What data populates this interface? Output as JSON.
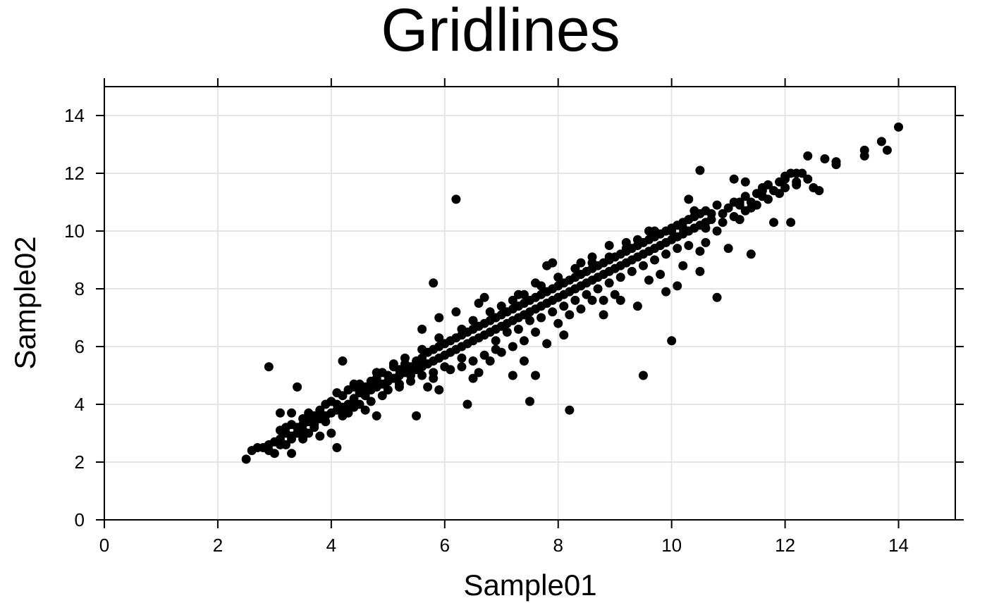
{
  "chart_data": {
    "type": "scatter",
    "title": "Gridlines",
    "xlabel": "Sample01",
    "ylabel": "Sample02",
    "xlim": [
      0,
      15
    ],
    "ylim": [
      0,
      15
    ],
    "xticks": [
      0,
      2,
      4,
      6,
      8,
      10,
      12,
      14
    ],
    "yticks": [
      0,
      2,
      4,
      6,
      8,
      10,
      12,
      14
    ],
    "grid": true,
    "marker_color": "#000000",
    "grid_color": "#e5e5e5",
    "points": [
      [
        2.5,
        2.1
      ],
      [
        2.6,
        2.4
      ],
      [
        2.7,
        2.5
      ],
      [
        2.8,
        2.5
      ],
      [
        2.9,
        2.6
      ],
      [
        3.0,
        2.7
      ],
      [
        2.9,
        2.4
      ],
      [
        3.0,
        2.3
      ],
      [
        3.1,
        2.8
      ],
      [
        3.2,
        2.6
      ],
      [
        3.1,
        3.1
      ],
      [
        3.2,
        3.2
      ],
      [
        3.3,
        2.9
      ],
      [
        3.3,
        3.3
      ],
      [
        3.4,
        3.0
      ],
      [
        3.4,
        3.2
      ],
      [
        3.5,
        3.3
      ],
      [
        3.5,
        3.5
      ],
      [
        3.6,
        3.4
      ],
      [
        3.6,
        3.7
      ],
      [
        3.7,
        3.3
      ],
      [
        3.7,
        3.6
      ],
      [
        3.8,
        3.5
      ],
      [
        3.8,
        3.8
      ],
      [
        3.9,
        3.6
      ],
      [
        3.9,
        4.0
      ],
      [
        4.0,
        3.7
      ],
      [
        4.0,
        4.1
      ],
      [
        4.1,
        3.8
      ],
      [
        4.1,
        4.0
      ],
      [
        4.2,
        3.9
      ],
      [
        4.2,
        4.3
      ],
      [
        4.3,
        4.0
      ],
      [
        4.3,
        4.5
      ],
      [
        4.4,
        4.2
      ],
      [
        4.4,
        4.6
      ],
      [
        4.5,
        4.4
      ],
      [
        4.5,
        4.7
      ],
      [
        4.6,
        4.3
      ],
      [
        4.6,
        4.6
      ],
      [
        4.7,
        4.5
      ],
      [
        4.7,
        4.8
      ],
      [
        4.8,
        4.6
      ],
      [
        4.8,
        4.9
      ],
      [
        4.9,
        4.7
      ],
      [
        4.9,
        5.1
      ],
      [
        5.0,
        4.8
      ],
      [
        5.0,
        5.0
      ],
      [
        5.1,
        4.9
      ],
      [
        5.1,
        5.3
      ],
      [
        5.2,
        5.0
      ],
      [
        5.2,
        5.2
      ],
      [
        5.3,
        5.1
      ],
      [
        5.3,
        5.4
      ],
      [
        5.4,
        5.0
      ],
      [
        5.4,
        5.3
      ],
      [
        5.5,
        5.2
      ],
      [
        5.5,
        5.5
      ],
      [
        5.6,
        5.3
      ],
      [
        5.6,
        5.6
      ],
      [
        5.7,
        5.4
      ],
      [
        5.7,
        5.8
      ],
      [
        5.8,
        5.5
      ],
      [
        5.8,
        5.9
      ],
      [
        5.9,
        5.6
      ],
      [
        5.9,
        6.0
      ],
      [
        6.0,
        5.7
      ],
      [
        6.0,
        6.1
      ],
      [
        6.1,
        5.8
      ],
      [
        6.1,
        6.2
      ],
      [
        6.2,
        5.9
      ],
      [
        6.2,
        6.3
      ],
      [
        6.3,
        6.0
      ],
      [
        6.3,
        6.4
      ],
      [
        6.4,
        6.1
      ],
      [
        6.4,
        6.5
      ],
      [
        6.5,
        6.2
      ],
      [
        6.5,
        6.6
      ],
      [
        6.6,
        6.3
      ],
      [
        6.6,
        6.7
      ],
      [
        6.7,
        6.4
      ],
      [
        6.7,
        6.8
      ],
      [
        6.8,
        6.5
      ],
      [
        6.8,
        6.9
      ],
      [
        6.9,
        6.6
      ],
      [
        6.9,
        7.0
      ],
      [
        7.0,
        6.7
      ],
      [
        7.0,
        7.1
      ],
      [
        7.1,
        6.8
      ],
      [
        7.1,
        7.2
      ],
      [
        7.2,
        6.9
      ],
      [
        7.2,
        7.3
      ],
      [
        7.3,
        7.0
      ],
      [
        7.3,
        7.4
      ],
      [
        7.4,
        7.1
      ],
      [
        7.4,
        7.5
      ],
      [
        7.5,
        7.2
      ],
      [
        7.5,
        7.6
      ],
      [
        7.6,
        7.3
      ],
      [
        7.6,
        7.7
      ],
      [
        7.7,
        7.4
      ],
      [
        7.7,
        7.8
      ],
      [
        7.8,
        7.5
      ],
      [
        7.8,
        7.9
      ],
      [
        7.9,
        7.6
      ],
      [
        7.9,
        8.0
      ],
      [
        8.0,
        7.7
      ],
      [
        8.0,
        8.1
      ],
      [
        8.1,
        7.8
      ],
      [
        8.1,
        8.2
      ],
      [
        8.2,
        7.9
      ],
      [
        8.2,
        8.3
      ],
      [
        8.3,
        8.0
      ],
      [
        8.3,
        8.4
      ],
      [
        8.4,
        8.1
      ],
      [
        8.4,
        8.5
      ],
      [
        8.5,
        8.2
      ],
      [
        8.5,
        8.6
      ],
      [
        8.6,
        8.3
      ],
      [
        8.6,
        8.7
      ],
      [
        8.7,
        8.4
      ],
      [
        8.7,
        8.8
      ],
      [
        8.8,
        8.5
      ],
      [
        8.8,
        8.9
      ],
      [
        8.9,
        8.6
      ],
      [
        8.9,
        9.0
      ],
      [
        9.0,
        8.7
      ],
      [
        9.0,
        9.1
      ],
      [
        9.1,
        8.8
      ],
      [
        9.1,
        9.2
      ],
      [
        9.2,
        8.9
      ],
      [
        9.2,
        9.3
      ],
      [
        9.3,
        9.0
      ],
      [
        9.3,
        9.4
      ],
      [
        9.4,
        9.1
      ],
      [
        9.4,
        9.5
      ],
      [
        9.5,
        9.2
      ],
      [
        9.5,
        9.6
      ],
      [
        9.6,
        9.3
      ],
      [
        9.6,
        9.7
      ],
      [
        9.7,
        9.4
      ],
      [
        9.7,
        9.8
      ],
      [
        9.8,
        9.5
      ],
      [
        9.8,
        9.9
      ],
      [
        9.9,
        9.6
      ],
      [
        9.9,
        10.0
      ],
      [
        10.0,
        9.7
      ],
      [
        10.0,
        10.1
      ],
      [
        10.1,
        9.8
      ],
      [
        10.1,
        10.2
      ],
      [
        10.2,
        9.9
      ],
      [
        10.2,
        10.3
      ],
      [
        10.3,
        10.0
      ],
      [
        10.3,
        10.4
      ],
      [
        10.4,
        10.1
      ],
      [
        10.4,
        10.5
      ],
      [
        10.5,
        10.2
      ],
      [
        10.5,
        10.6
      ],
      [
        10.6,
        10.3
      ],
      [
        10.6,
        10.7
      ],
      [
        10.7,
        10.4
      ],
      [
        10.8,
        10.9
      ],
      [
        10.9,
        10.6
      ],
      [
        11.0,
        10.8
      ],
      [
        11.1,
        11.0
      ],
      [
        11.1,
        10.5
      ],
      [
        11.2,
        10.9
      ],
      [
        11.3,
        11.2
      ],
      [
        11.3,
        10.7
      ],
      [
        11.4,
        11.0
      ],
      [
        11.5,
        11.3
      ],
      [
        11.5,
        10.9
      ],
      [
        11.6,
        11.4
      ],
      [
        11.7,
        11.1
      ],
      [
        11.7,
        11.6
      ],
      [
        11.8,
        11.4
      ],
      [
        11.9,
        11.7
      ],
      [
        12.0,
        11.5
      ],
      [
        12.0,
        11.8
      ],
      [
        12.1,
        12.0
      ],
      [
        12.2,
        11.7
      ],
      [
        12.3,
        12.0
      ],
      [
        12.4,
        11.8
      ],
      [
        12.5,
        11.5
      ],
      [
        12.6,
        11.4
      ],
      [
        12.7,
        12.5
      ],
      [
        12.9,
        12.4
      ],
      [
        13.4,
        12.8
      ],
      [
        13.7,
        13.1
      ],
      [
        14.0,
        13.6
      ],
      [
        13.4,
        12.6
      ],
      [
        13.8,
        12.8
      ],
      [
        12.9,
        12.3
      ],
      [
        12.4,
        12.6
      ],
      [
        12.2,
        12.0
      ],
      [
        12.1,
        10.3
      ],
      [
        11.8,
        10.3
      ],
      [
        11.4,
        9.2
      ],
      [
        11.0,
        9.4
      ],
      [
        10.8,
        7.7
      ],
      [
        10.5,
        8.6
      ],
      [
        10.1,
        8.1
      ],
      [
        10.0,
        6.2
      ],
      [
        9.5,
        5.0
      ],
      [
        8.2,
        3.8
      ],
      [
        7.5,
        4.1
      ],
      [
        6.4,
        4.0
      ],
      [
        5.5,
        3.6
      ],
      [
        4.1,
        2.5
      ],
      [
        3.3,
        2.3
      ],
      [
        2.9,
        5.3
      ],
      [
        3.4,
        4.6
      ],
      [
        4.2,
        5.5
      ],
      [
        5.8,
        8.2
      ],
      [
        6.2,
        11.1
      ],
      [
        10.5,
        12.1
      ],
      [
        10.3,
        11.1
      ],
      [
        11.1,
        11.8
      ],
      [
        11.3,
        11.7
      ],
      [
        9.9,
        7.9
      ],
      [
        9.4,
        7.4
      ],
      [
        9.1,
        7.6
      ],
      [
        8.8,
        7.1
      ],
      [
        8.6,
        7.6
      ],
      [
        8.4,
        7.3
      ],
      [
        8.1,
        6.4
      ],
      [
        7.8,
        6.1
      ],
      [
        7.6,
        5.0
      ],
      [
        7.4,
        5.5
      ],
      [
        7.2,
        5.0
      ],
      [
        7.0,
        5.8
      ],
      [
        6.8,
        5.5
      ],
      [
        6.6,
        5.1
      ],
      [
        6.5,
        4.9
      ],
      [
        6.3,
        5.3
      ],
      [
        6.1,
        5.2
      ],
      [
        5.9,
        4.5
      ],
      [
        5.7,
        4.6
      ],
      [
        5.8,
        4.9
      ],
      [
        5.2,
        4.7
      ],
      [
        4.8,
        3.6
      ],
      [
        4.6,
        3.8
      ],
      [
        4.3,
        3.7
      ],
      [
        4.0,
        3.0
      ],
      [
        3.8,
        2.9
      ],
      [
        3.6,
        3.0
      ],
      [
        3.3,
        3.7
      ],
      [
        3.1,
        3.7
      ],
      [
        3.5,
        2.8
      ],
      [
        3.2,
        3.0
      ],
      [
        5.6,
        6.6
      ],
      [
        5.9,
        7.0
      ],
      [
        6.2,
        7.2
      ],
      [
        6.6,
        7.5
      ],
      [
        6.7,
        7.7
      ],
      [
        7.3,
        7.8
      ],
      [
        7.6,
        8.2
      ],
      [
        7.8,
        8.8
      ],
      [
        7.9,
        8.9
      ],
      [
        8.4,
        8.9
      ],
      [
        8.6,
        9.1
      ],
      [
        8.9,
        9.5
      ],
      [
        9.2,
        9.6
      ],
      [
        9.6,
        10.0
      ],
      [
        10.0,
        10.0
      ],
      [
        10.4,
        10.7
      ],
      [
        10.7,
        10.6
      ],
      [
        11.2,
        11.0
      ],
      [
        11.6,
        11.5
      ],
      [
        12.0,
        11.9
      ],
      [
        6.9,
        6.2
      ],
      [
        7.1,
        6.5
      ],
      [
        7.3,
        6.6
      ],
      [
        7.5,
        6.9
      ],
      [
        7.7,
        7.0
      ],
      [
        7.9,
        7.2
      ],
      [
        8.1,
        7.4
      ],
      [
        8.3,
        7.6
      ],
      [
        8.5,
        7.8
      ],
      [
        8.7,
        8.0
      ],
      [
        8.9,
        8.2
      ],
      [
        9.1,
        8.4
      ],
      [
        9.3,
        8.6
      ],
      [
        9.5,
        8.8
      ],
      [
        9.7,
        9.0
      ],
      [
        9.9,
        9.2
      ],
      [
        10.1,
        9.4
      ],
      [
        10.3,
        9.5
      ],
      [
        10.5,
        9.3
      ],
      [
        10.6,
        9.6
      ],
      [
        10.2,
        8.8
      ],
      [
        9.8,
        8.5
      ],
      [
        9.6,
        8.3
      ],
      [
        9.0,
        7.8
      ],
      [
        8.8,
        7.6
      ],
      [
        8.2,
        7.1
      ],
      [
        8.0,
        6.8
      ],
      [
        7.6,
        6.5
      ],
      [
        7.4,
        6.2
      ],
      [
        7.2,
        6.0
      ],
      [
        6.9,
        5.9
      ],
      [
        6.7,
        5.7
      ],
      [
        6.5,
        5.5
      ],
      [
        6.3,
        5.6
      ],
      [
        6.0,
        5.3
      ],
      [
        5.8,
        5.1
      ],
      [
        5.6,
        5.0
      ],
      [
        5.4,
        4.8
      ],
      [
        5.2,
        4.6
      ],
      [
        5.0,
        4.5
      ],
      [
        4.9,
        4.3
      ],
      [
        4.7,
        4.1
      ],
      [
        4.5,
        4.0
      ],
      [
        4.4,
        3.9
      ],
      [
        4.2,
        3.6
      ],
      [
        3.9,
        3.4
      ],
      [
        3.7,
        3.2
      ],
      [
        3.5,
        3.1
      ],
      [
        3.3,
        2.8
      ],
      [
        3.1,
        2.6
      ],
      [
        4.1,
        4.4
      ],
      [
        4.4,
        4.7
      ],
      [
        4.8,
        5.1
      ],
      [
        5.1,
        5.4
      ],
      [
        5.3,
        5.6
      ],
      [
        5.6,
        5.9
      ],
      [
        5.9,
        6.3
      ],
      [
        6.3,
        6.6
      ],
      [
        6.5,
        6.9
      ],
      [
        6.8,
        7.2
      ],
      [
        7.0,
        7.4
      ],
      [
        7.2,
        7.6
      ],
      [
        7.4,
        7.8
      ],
      [
        7.7,
        8.1
      ],
      [
        8.0,
        8.4
      ],
      [
        8.3,
        8.7
      ],
      [
        8.6,
        8.9
      ],
      [
        8.9,
        9.1
      ],
      [
        9.2,
        9.4
      ],
      [
        9.4,
        9.7
      ],
      [
        9.7,
        10.0
      ],
      [
        10.2,
        10.1
      ],
      [
        10.6,
        10.1
      ],
      [
        10.9,
        10.3
      ],
      [
        11.4,
        10.8
      ],
      [
        11.9,
        11.3
      ],
      [
        12.2,
        11.6
      ],
      [
        11.6,
        11.2
      ],
      [
        11.2,
        10.4
      ],
      [
        10.8,
        10.0
      ]
    ]
  }
}
